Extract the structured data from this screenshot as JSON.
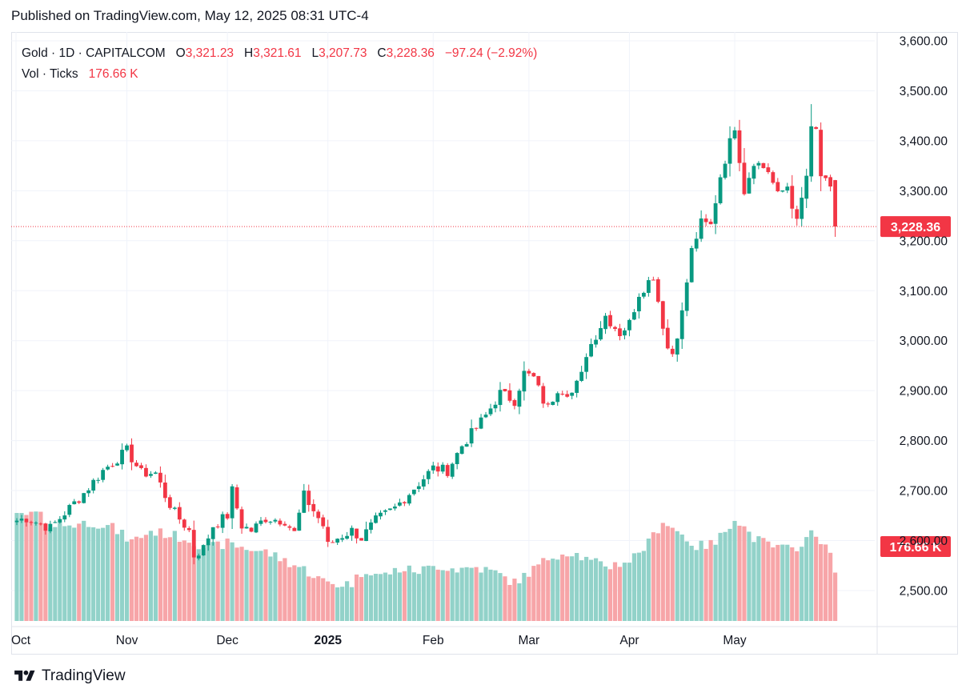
{
  "header": {
    "published": "Published on TradingView.com, May 12, 2025 08:31 UTC-4"
  },
  "legend": {
    "symbol": "Gold · 1D · CAPITALCOM",
    "o_label": "O",
    "o_value": "3,321.23",
    "h_label": "H",
    "h_value": "3,321.61",
    "l_label": "L",
    "l_value": "3,207.73",
    "c_label": "C",
    "c_value": "3,228.36",
    "change": "−97.24 (−2.92%)",
    "vol_label": "Vol · Ticks",
    "vol_value": "176.66 K"
  },
  "footer": {
    "brand": "TradingView",
    "logo_icon": "tradingview-logo-icon"
  },
  "colors": {
    "up": "#089981",
    "down": "#f23645",
    "vol_up": "#92d2c9",
    "vol_down": "#f7a5a8",
    "grid": "#f0f3fa",
    "axis_text": "#131722"
  },
  "chart_data": {
    "type": "candlestick",
    "y_ticks": [
      "3,600.00",
      "3,500.00",
      "3,400.00",
      "3,300.00",
      "3,200.00",
      "3,100.00",
      "3,000.00",
      "2,900.00",
      "2,800.00",
      "2,700.00",
      "2,600.00",
      "2,500.00"
    ],
    "y_tick_values": [
      3600,
      3500,
      3400,
      3300,
      3200,
      3100,
      3000,
      2900,
      2800,
      2700,
      2600,
      2500
    ],
    "ylim": [
      2440,
      3640
    ],
    "x_labels": [
      {
        "label": "Oct",
        "bar_index": 0
      },
      {
        "label": "Nov",
        "bar_index": 23
      },
      {
        "label": "Dec",
        "bar_index": 44
      },
      {
        "label": "2025",
        "bar_index": 65
      },
      {
        "label": "Feb",
        "bar_index": 87
      },
      {
        "label": "Mar",
        "bar_index": 107
      },
      {
        "label": "Apr",
        "bar_index": 128
      },
      {
        "label": "May",
        "bar_index": 150
      }
    ],
    "last_price": 3228.36,
    "last_price_label": "3,228.36",
    "last_volume_label": "176.66 K",
    "anchors": [
      [
        0,
        2640
      ],
      [
        2,
        2645
      ],
      [
        7,
        2625
      ],
      [
        14,
        2695
      ],
      [
        18,
        2740
      ],
      [
        23,
        2780
      ],
      [
        26,
        2735
      ],
      [
        29,
        2735
      ],
      [
        31,
        2690
      ],
      [
        33,
        2655
      ],
      [
        36,
        2620
      ],
      [
        37,
        2570
      ],
      [
        39,
        2585
      ],
      [
        41,
        2630
      ],
      [
        44,
        2650
      ],
      [
        45,
        2700
      ],
      [
        47,
        2630
      ],
      [
        49,
        2620
      ],
      [
        52,
        2645
      ],
      [
        56,
        2640
      ],
      [
        58,
        2615
      ],
      [
        60,
        2690
      ],
      [
        62,
        2660
      ],
      [
        64,
        2630
      ],
      [
        65,
        2590
      ],
      [
        67,
        2605
      ],
      [
        70,
        2620
      ],
      [
        72,
        2605
      ],
      [
        75,
        2640
      ],
      [
        79,
        2665
      ],
      [
        83,
        2705
      ],
      [
        87,
        2745
      ],
      [
        90,
        2740
      ],
      [
        93,
        2790
      ],
      [
        98,
        2850
      ],
      [
        101,
        2895
      ],
      [
        104,
        2880
      ],
      [
        106,
        2935
      ],
      [
        108,
        2925
      ],
      [
        110,
        2880
      ],
      [
        111,
        2865
      ],
      [
        113,
        2905
      ],
      [
        116,
        2895
      ],
      [
        118,
        2930
      ],
      [
        119,
        2975
      ],
      [
        122,
        3030
      ],
      [
        123,
        3050
      ],
      [
        126,
        3015
      ],
      [
        128,
        3035
      ],
      [
        130,
        3095
      ],
      [
        133,
        3130
      ],
      [
        134,
        3080
      ],
      [
        136,
        2985
      ],
      [
        137,
        2975
      ],
      [
        139,
        3055
      ],
      [
        141,
        3180
      ],
      [
        143,
        3235
      ],
      [
        145,
        3230
      ],
      [
        147,
        3330
      ],
      [
        150,
        3430
      ],
      [
        152,
        3300
      ],
      [
        154,
        3360
      ],
      [
        157,
        3340
      ],
      [
        159,
        3290
      ],
      [
        161,
        3310
      ],
      [
        163,
        3235
      ],
      [
        165,
        3330
      ],
      [
        166,
        3420
      ],
      [
        167,
        3420
      ],
      [
        168,
        3330
      ],
      [
        170,
        3300
      ],
      [
        171,
        3320
      ]
    ],
    "volume_anchors": [
      [
        0,
        0.6
      ],
      [
        4,
        0.62
      ],
      [
        8,
        0.55
      ],
      [
        12,
        0.56
      ],
      [
        16,
        0.57
      ],
      [
        20,
        0.54
      ],
      [
        24,
        0.46
      ],
      [
        28,
        0.52
      ],
      [
        32,
        0.5
      ],
      [
        36,
        0.47
      ],
      [
        40,
        0.42
      ],
      [
        44,
        0.45
      ],
      [
        48,
        0.42
      ],
      [
        52,
        0.4
      ],
      [
        56,
        0.35
      ],
      [
        60,
        0.3
      ],
      [
        64,
        0.23
      ],
      [
        67,
        0.21
      ],
      [
        70,
        0.22
      ],
      [
        73,
        0.3
      ],
      [
        76,
        0.26
      ],
      [
        80,
        0.3
      ],
      [
        84,
        0.29
      ],
      [
        88,
        0.32
      ],
      [
        92,
        0.3
      ],
      [
        96,
        0.31
      ],
      [
        100,
        0.28
      ],
      [
        104,
        0.22
      ],
      [
        108,
        0.3
      ],
      [
        112,
        0.38
      ],
      [
        116,
        0.4
      ],
      [
        120,
        0.34
      ],
      [
        124,
        0.32
      ],
      [
        128,
        0.35
      ],
      [
        132,
        0.45
      ],
      [
        135,
        0.58
      ],
      [
        138,
        0.52
      ],
      [
        142,
        0.43
      ],
      [
        146,
        0.45
      ],
      [
        150,
        0.6
      ],
      [
        154,
        0.48
      ],
      [
        158,
        0.43
      ],
      [
        162,
        0.41
      ],
      [
        166,
        0.5
      ],
      [
        169,
        0.46
      ],
      [
        171,
        0.28
      ]
    ],
    "last_candle": {
      "open": 3321.23,
      "high": 3321.61,
      "low": 3207.73,
      "close": 3228.36
    }
  }
}
